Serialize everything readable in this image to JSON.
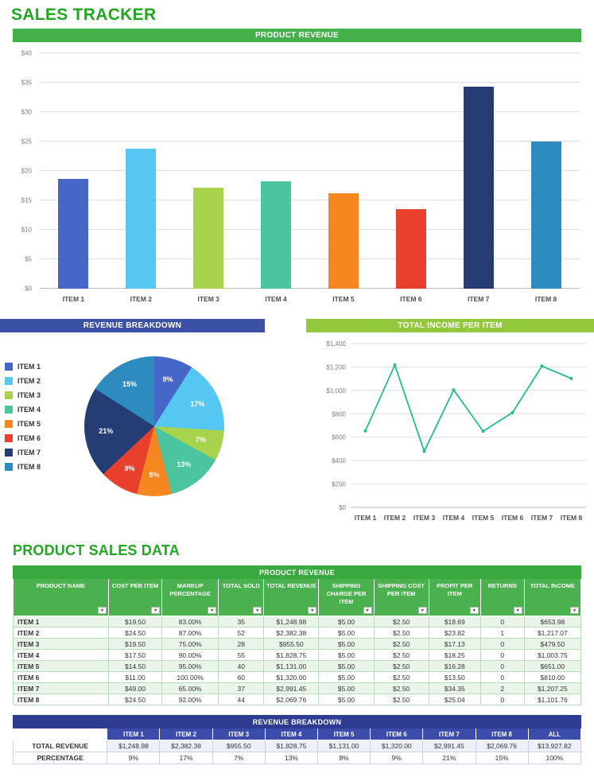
{
  "title": "SALES TRACKER",
  "section_title": "PRODUCT SALES DATA",
  "palette": {
    "title_green": "#21a721",
    "header_green": "#43b049",
    "header_indigo": "#3c50a5",
    "header_lightgreen": "#93c83d",
    "table_green_dark": "#38a93e",
    "table_green": "#4ab14e",
    "row_alt_green": "#e9f5e9",
    "table_navy": "#2d3c90",
    "table_blue": "#3b4caa",
    "line_color": "#23bd8e"
  },
  "item_colors": [
    "#4667c8",
    "#56c7f2",
    "#a8d44d",
    "#4cc4a0",
    "#f6861f",
    "#e8402c",
    "#253d73",
    "#2e8bc0"
  ],
  "icons": {
    "filter_dropdown": "▾"
  },
  "chart_data": [
    {
      "type": "bar",
      "title": "PRODUCT REVENUE",
      "categories": [
        "ITEM 1",
        "ITEM 2",
        "ITEM 3",
        "ITEM 4",
        "ITEM 5",
        "ITEM 6",
        "ITEM 7",
        "ITEM 8"
      ],
      "values": [
        18.69,
        23.82,
        17.13,
        18.25,
        16.28,
        13.5,
        34.35,
        25.04
      ],
      "xlabel": "",
      "ylabel": "",
      "ylim": [
        0,
        40
      ],
      "yticks": [
        "$0",
        "$5",
        "$10",
        "$15",
        "$20",
        "$25",
        "$30",
        "$35",
        "$40"
      ],
      "grid": true,
      "legend_position": "none"
    },
    {
      "type": "pie",
      "title": "REVENUE BREAKDOWN",
      "categories": [
        "ITEM 1",
        "ITEM 2",
        "ITEM 3",
        "ITEM 4",
        "ITEM 5",
        "ITEM 6",
        "ITEM 7",
        "ITEM 8"
      ],
      "values": [
        9,
        17,
        7,
        13,
        8,
        9,
        21,
        15
      ],
      "labels": [
        "9%",
        "17%",
        "7%",
        "13%",
        "8%",
        "9%",
        "21%",
        "15%"
      ],
      "legend_position": "left"
    },
    {
      "type": "line",
      "title": "TOTAL INCOME PER ITEM",
      "categories": [
        "ITEM 1",
        "ITEM 2",
        "ITEM 3",
        "ITEM 4",
        "ITEM 5",
        "ITEM 6",
        "ITEM 7",
        "ITEM 8"
      ],
      "values": [
        653.98,
        1217.07,
        479.5,
        1003.75,
        651.0,
        810.0,
        1207.25,
        1101.76
      ],
      "xlabel": "",
      "ylabel": "",
      "ylim": [
        0,
        1400
      ],
      "yticks": [
        "$0",
        "$200",
        "$400",
        "$600",
        "$800",
        "$1,000",
        "$1,200",
        "$1,400"
      ],
      "grid": true,
      "legend_position": "none"
    }
  ],
  "sales_table": {
    "title": "PRODUCT REVENUE",
    "columns": [
      "PRODUCT NAME",
      "COST PER ITEM",
      "MARKUP PERCENTAGE",
      "TOTAL SOLD",
      "TOTAL REVENUE",
      "SHIPPING CHARGE PER ITEM",
      "SHIPPING COST PER ITEM",
      "PROFIT PER ITEM",
      "RETURNS",
      "TOTAL INCOME"
    ],
    "rows": [
      [
        "ITEM 1",
        "$19.50",
        "83.00%",
        "35",
        "$1,248.98",
        "$5.00",
        "$2.50",
        "$18.69",
        "0",
        "$653.98"
      ],
      [
        "ITEM 2",
        "$24.50",
        "87.00%",
        "52",
        "$2,382.38",
        "$5.00",
        "$2.50",
        "$23.82",
        "1",
        "$1,217.07"
      ],
      [
        "ITEM 3",
        "$19.50",
        "75.00%",
        "28",
        "$955.50",
        "$5.00",
        "$2.50",
        "$17.13",
        "0",
        "$479.50"
      ],
      [
        "ITEM 4",
        "$17.50",
        "90.00%",
        "55",
        "$1,828.75",
        "$5.00",
        "$2.50",
        "$18.25",
        "0",
        "$1,003.75"
      ],
      [
        "ITEM 5",
        "$14.50",
        "95.00%",
        "40",
        "$1,131.00",
        "$5.00",
        "$2.50",
        "$16.28",
        "0",
        "$651.00"
      ],
      [
        "ITEM 6",
        "$11.00",
        "100.00%",
        "60",
        "$1,320.00",
        "$5.00",
        "$2.50",
        "$13.50",
        "0",
        "$810.00"
      ],
      [
        "ITEM 7",
        "$49.00",
        "65.00%",
        "37",
        "$2,991.45",
        "$5.00",
        "$2.50",
        "$34.35",
        "2",
        "$1,207.25"
      ],
      [
        "ITEM 8",
        "$24.50",
        "92.00%",
        "44",
        "$2,069.76",
        "$5.00",
        "$2.50",
        "$25.04",
        "0",
        "$1,101.76"
      ]
    ]
  },
  "breakdown_table": {
    "title": "REVENUE BREAKDOWN",
    "columns": [
      "",
      "ITEM 1",
      "ITEM 2",
      "ITEM 3",
      "ITEM 4",
      "ITEM 5",
      "ITEM 6",
      "ITEM 7",
      "ITEM 8",
      "ALL"
    ],
    "rows": [
      [
        "TOTAL REVENUE",
        "$1,248.98",
        "$2,382.38",
        "$955.50",
        "$1,828.75",
        "$1,131.00",
        "$1,320.00",
        "$2,991.45",
        "$2,069.76",
        "$13,927.82"
      ],
      [
        "PERCENTAGE",
        "9%",
        "17%",
        "7%",
        "13%",
        "8%",
        "9%",
        "21%",
        "15%",
        "100%"
      ]
    ]
  }
}
